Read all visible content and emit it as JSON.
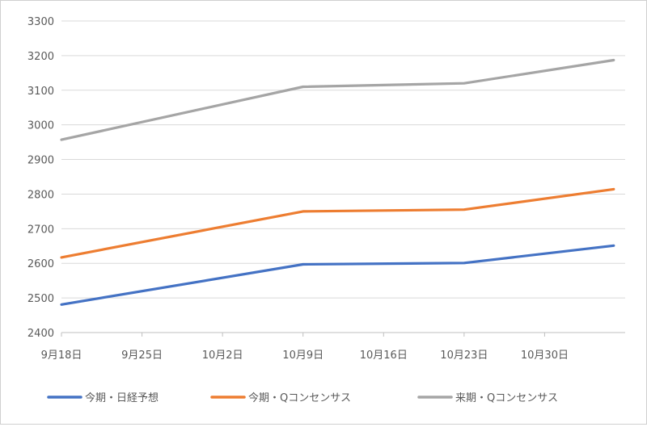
{
  "chart_data": {
    "type": "line",
    "title": "",
    "xlabel": "",
    "ylabel": "",
    "x_start_day": 0,
    "x_end_day": 49,
    "x_ticks": [
      {
        "day": 0,
        "label": "9月18日"
      },
      {
        "day": 7,
        "label": "9月25日"
      },
      {
        "day": 14,
        "label": "10月2日"
      },
      {
        "day": 21,
        "label": "10月9日"
      },
      {
        "day": 28,
        "label": "10月16日"
      },
      {
        "day": 35,
        "label": "10月23日"
      },
      {
        "day": 42,
        "label": "10月30日"
      }
    ],
    "ylim": [
      2400,
      3300
    ],
    "y_ticks": [
      2400,
      2500,
      2600,
      2700,
      2800,
      2900,
      3000,
      3100,
      3200,
      3300
    ],
    "grid": true,
    "legend_position": "bottom",
    "series": [
      {
        "name": "今期・日経予想",
        "color": "#4472C4",
        "points": [
          {
            "day": 0,
            "value": 2481
          },
          {
            "day": 21,
            "value": 2597
          },
          {
            "day": 35,
            "value": 2601
          },
          {
            "day": 48,
            "value": 2651
          }
        ]
      },
      {
        "name": "今期・Qコンセンサス",
        "color": "#ED7D31",
        "points": [
          {
            "day": 0,
            "value": 2617
          },
          {
            "day": 21,
            "value": 2750
          },
          {
            "day": 35,
            "value": 2755
          },
          {
            "day": 48,
            "value": 2814
          }
        ]
      },
      {
        "name": "来期・Qコンセンサス",
        "color": "#A5A5A5",
        "points": [
          {
            "day": 0,
            "value": 2957
          },
          {
            "day": 21,
            "value": 3110
          },
          {
            "day": 35,
            "value": 3120
          },
          {
            "day": 48,
            "value": 3187
          }
        ]
      }
    ]
  }
}
